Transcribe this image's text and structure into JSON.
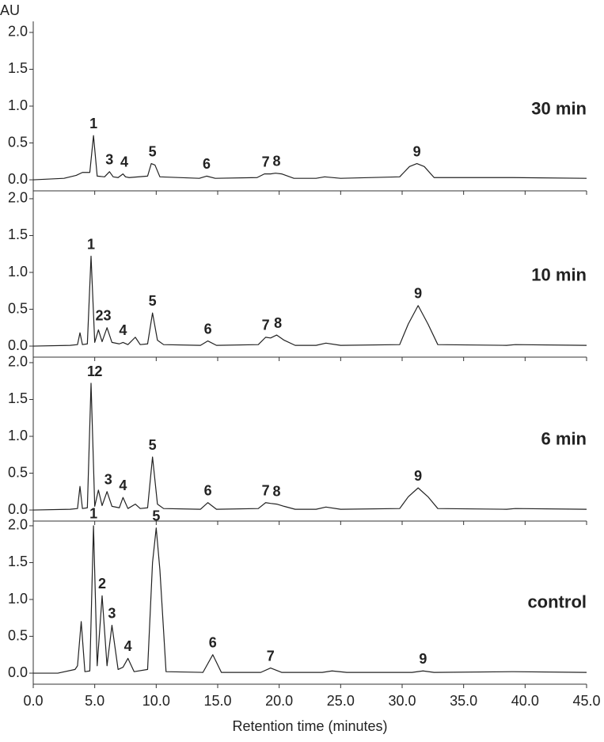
{
  "chart_data": [
    {
      "type": "line",
      "title": "30 min",
      "ylabel": "AU",
      "color": "#222222",
      "xlim": [
        0,
        45
      ],
      "ylim": [
        -0.15,
        2.15
      ],
      "yticks": [
        {
          "value": 0,
          "label": "0.0"
        },
        {
          "value": 0.5,
          "label": "0.5"
        },
        {
          "value": 1,
          "label": "1.0"
        },
        {
          "value": 1.5,
          "label": "1.5"
        },
        {
          "value": 2,
          "label": "2.0"
        }
      ],
      "x": [
        0,
        2.5,
        3.5,
        4.0,
        4.6,
        4.9,
        5.2,
        5.8,
        6.2,
        6.5,
        6.9,
        7.3,
        7.5,
        7.8,
        9.3,
        9.6,
        9.9,
        10.3,
        13.5,
        14.1,
        14.8,
        18.2,
        18.8,
        19.3,
        19.7,
        20.2,
        21.2,
        23,
        23.7,
        25,
        29.8,
        30.6,
        31.2,
        31.8,
        32.6,
        39,
        45
      ],
      "values": [
        0.0,
        0.02,
        0.06,
        0.1,
        0.1,
        0.6,
        0.05,
        0.04,
        0.11,
        0.04,
        0.03,
        0.08,
        0.04,
        0.03,
        0.05,
        0.22,
        0.2,
        0.04,
        0.02,
        0.05,
        0.02,
        0.03,
        0.08,
        0.08,
        0.09,
        0.08,
        0.02,
        0.02,
        0.04,
        0.02,
        0.04,
        0.18,
        0.22,
        0.18,
        0.03,
        0.03,
        0.02
      ],
      "annotations": [
        {
          "text": "1",
          "x": 4.9
        },
        {
          "text": "3",
          "x": 6.2
        },
        {
          "text": "4",
          "x": 7.4
        },
        {
          "text": "5",
          "x": 9.7
        },
        {
          "text": "6",
          "x": 14.1
        },
        {
          "text": "7",
          "x": 18.9
        },
        {
          "text": "8",
          "x": 19.8
        },
        {
          "text": "9",
          "x": 31.2
        }
      ]
    },
    {
      "type": "line",
      "title": "10 min",
      "color": "#222222",
      "xlim": [
        0,
        45
      ],
      "ylim": [
        -0.15,
        2.15
      ],
      "yticks": [
        {
          "value": 0,
          "label": "0.0"
        },
        {
          "value": 0.5,
          "label": "0.5"
        },
        {
          "value": 1,
          "label": "1.0"
        },
        {
          "value": 1.5,
          "label": "1.5"
        },
        {
          "value": 2,
          "label": "2.0"
        }
      ],
      "x": [
        0,
        3.0,
        3.6,
        3.8,
        4.0,
        4.4,
        4.7,
        5.0,
        5.3,
        5.6,
        6.0,
        6.4,
        7.0,
        7.3,
        7.7,
        8.3,
        8.7,
        9.3,
        9.7,
        10.1,
        10.6,
        13.6,
        14.2,
        14.9,
        18.3,
        18.9,
        19.3,
        19.8,
        20.4,
        21.3,
        23.0,
        23.8,
        25,
        29.8,
        30.5,
        31.3,
        32.1,
        32.9,
        38.5,
        39.2,
        45
      ],
      "values": [
        0,
        0.01,
        0.02,
        0.18,
        0.02,
        0.03,
        1.22,
        0.05,
        0.22,
        0.06,
        0.25,
        0.05,
        0.03,
        0.05,
        0.02,
        0.12,
        0.02,
        0.03,
        0.45,
        0.08,
        0.02,
        0.01,
        0.07,
        0.01,
        0.02,
        0.12,
        0.11,
        0.15,
        0.08,
        0.01,
        0.01,
        0.04,
        0.01,
        0.02,
        0.3,
        0.55,
        0.3,
        0.02,
        0.01,
        0.02,
        0.01
      ],
      "annotations": [
        {
          "text": "1",
          "x": 4.7
        },
        {
          "text": "23",
          "x": 5.7
        },
        {
          "text": "4",
          "x": 7.3
        },
        {
          "text": "5",
          "x": 9.7
        },
        {
          "text": "6",
          "x": 14.2
        },
        {
          "text": "7",
          "x": 18.9
        },
        {
          "text": "8",
          "x": 19.9
        },
        {
          "text": "9",
          "x": 31.3
        }
      ]
    },
    {
      "type": "line",
      "title": "6 min",
      "color": "#222222",
      "xlim": [
        0,
        45
      ],
      "ylim": [
        -0.15,
        2.15
      ],
      "yticks": [
        {
          "value": 0,
          "label": "0.0"
        },
        {
          "value": 0.5,
          "label": "0.5"
        },
        {
          "value": 1,
          "label": "1.0"
        },
        {
          "value": 1.5,
          "label": "1.5"
        },
        {
          "value": 2,
          "label": "2.0"
        }
      ],
      "x": [
        0,
        3.0,
        3.6,
        3.8,
        4.0,
        4.4,
        4.7,
        5.0,
        5.3,
        5.6,
        6.0,
        6.4,
        7.0,
        7.3,
        7.7,
        8.3,
        8.7,
        9.3,
        9.7,
        10.1,
        10.6,
        13.6,
        14.2,
        14.9,
        18.3,
        18.9,
        19.3,
        19.8,
        20.4,
        21.3,
        23.0,
        23.8,
        25,
        29.8,
        30.5,
        31.3,
        32.1,
        32.9,
        38.5,
        39.2,
        45
      ],
      "values": [
        0,
        0.01,
        0.02,
        0.32,
        0.02,
        0.03,
        1.72,
        0.05,
        0.27,
        0.06,
        0.25,
        0.05,
        0.03,
        0.17,
        0.02,
        0.08,
        0.02,
        0.03,
        0.72,
        0.08,
        0.02,
        0.01,
        0.1,
        0.01,
        0.02,
        0.1,
        0.09,
        0.08,
        0.05,
        0.01,
        0.01,
        0.04,
        0.01,
        0.02,
        0.18,
        0.3,
        0.18,
        0.02,
        0.01,
        0.02,
        0.01
      ],
      "annotations": [
        {
          "text": "1",
          "x": 4.7
        },
        {
          "text": "2",
          "x": 5.3
        },
        {
          "text": "3",
          "x": 6.1
        },
        {
          "text": "4",
          "x": 7.3
        },
        {
          "text": "5",
          "x": 9.7
        },
        {
          "text": "6",
          "x": 14.2
        },
        {
          "text": "7",
          "x": 18.9
        },
        {
          "text": "8",
          "x": 19.8
        },
        {
          "text": "9",
          "x": 31.3
        }
      ]
    },
    {
      "type": "line",
      "title": "control",
      "xlabel": "Retention time (minutes)",
      "color": "#222222",
      "xlim": [
        0,
        45
      ],
      "ylim": [
        -0.15,
        2.15
      ],
      "xticks": [
        {
          "value": 0,
          "label": "0.0"
        },
        {
          "value": 5,
          "label": "5.0"
        },
        {
          "value": 10,
          "label": "10.0"
        },
        {
          "value": 15,
          "label": "15.0"
        },
        {
          "value": 20,
          "label": "20.0"
        },
        {
          "value": 25,
          "label": "25.0"
        },
        {
          "value": 30,
          "label": "30.0"
        },
        {
          "value": 35,
          "label": "35.0"
        },
        {
          "value": 40,
          "label": "40.0"
        },
        {
          "value": 45,
          "label": "45.0"
        }
      ],
      "yticks": [
        {
          "value": 0,
          "label": "0.0"
        },
        {
          "value": 0.5,
          "label": "0.5"
        },
        {
          "value": 1,
          "label": "1.0"
        },
        {
          "value": 1.5,
          "label": "1.5"
        },
        {
          "value": 2,
          "label": "2.0"
        }
      ],
      "x": [
        0,
        2.0,
        3.4,
        3.6,
        3.9,
        4.2,
        4.6,
        4.9,
        5.2,
        5.6,
        6.0,
        6.4,
        6.9,
        7.3,
        7.7,
        8.2,
        9.3,
        9.7,
        10.0,
        10.3,
        10.8,
        13.8,
        14.6,
        15.3,
        18.5,
        19.3,
        20.2,
        23.5,
        24.3,
        25.5,
        30.8,
        31.7,
        32.6,
        39,
        45
      ],
      "values": [
        0,
        0,
        0.05,
        0.1,
        0.7,
        0.02,
        0.03,
        2.0,
        0.1,
        1.05,
        0.1,
        0.65,
        0.05,
        0.08,
        0.2,
        0.02,
        0.05,
        1.5,
        1.97,
        1.4,
        0.02,
        0.01,
        0.25,
        0.01,
        0.01,
        0.07,
        0.01,
        0.01,
        0.03,
        0.01,
        0.01,
        0.03,
        0.01,
        0.02,
        0.01
      ],
      "annotations": [
        {
          "text": "1",
          "x": 4.9
        },
        {
          "text": "2",
          "x": 5.6
        },
        {
          "text": "3",
          "x": 6.4
        },
        {
          "text": "4",
          "x": 7.7
        },
        {
          "text": "5",
          "x": 10.0
        },
        {
          "text": "6",
          "x": 14.6
        },
        {
          "text": "7",
          "x": 19.3
        },
        {
          "text": "9",
          "x": 31.7
        }
      ]
    }
  ]
}
